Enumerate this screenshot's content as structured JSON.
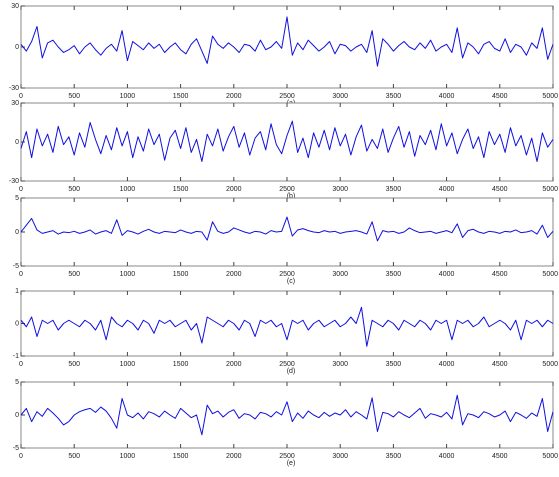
{
  "chart_data": [
    {
      "type": "line",
      "xlabel": "(a)",
      "color": "#1010e0",
      "xlim": [
        0,
        5000
      ],
      "ylim": [
        -30,
        30
      ],
      "xticks": [
        0,
        500,
        1000,
        1500,
        2000,
        2500,
        3000,
        3500,
        4000,
        4500,
        5000
      ],
      "yticks": [
        -30,
        0,
        30
      ],
      "x": [
        0,
        50,
        100,
        150,
        200,
        250,
        300,
        350,
        400,
        450,
        500,
        550,
        600,
        650,
        700,
        750,
        800,
        850,
        900,
        950,
        1000,
        1050,
        1100,
        1150,
        1200,
        1250,
        1300,
        1350,
        1400,
        1450,
        1500,
        1550,
        1600,
        1650,
        1700,
        1750,
        1800,
        1850,
        1900,
        1950,
        2000,
        2050,
        2100,
        2150,
        2200,
        2250,
        2300,
        2350,
        2400,
        2450,
        2500,
        2550,
        2600,
        2650,
        2700,
        2750,
        2800,
        2850,
        2900,
        2950,
        3000,
        3050,
        3100,
        3150,
        3200,
        3250,
        3300,
        3350,
        3400,
        3450,
        3500,
        3550,
        3600,
        3650,
        3700,
        3750,
        3800,
        3850,
        3900,
        3950,
        4000,
        4050,
        4100,
        4150,
        4200,
        4250,
        4300,
        4350,
        4400,
        4450,
        4500,
        4550,
        4600,
        4650,
        4700,
        4750,
        4800,
        4850,
        4900,
        4950,
        5000
      ],
      "values": [
        2,
        -3,
        4,
        15,
        -8,
        3,
        5,
        0,
        -4,
        -2,
        1,
        -5,
        0,
        3,
        -2,
        -6,
        -1,
        2,
        -3,
        12,
        -10,
        4,
        1,
        -2,
        3,
        -1,
        2,
        -4,
        0,
        3,
        -2,
        -5,
        2,
        6,
        -3,
        -12,
        8,
        2,
        -1,
        3,
        0,
        -4,
        2,
        1,
        -3,
        5,
        -2,
        0,
        4,
        -1,
        22,
        -6,
        3,
        -2,
        5,
        1,
        -3,
        0,
        4,
        -5,
        2,
        1,
        -3,
        0,
        2,
        -4,
        12,
        -14,
        6,
        2,
        -3,
        1,
        4,
        0,
        -2,
        3,
        -1,
        5,
        -3,
        0,
        2,
        -4,
        14,
        -8,
        3,
        0,
        -5,
        2,
        4,
        -1,
        -3,
        6,
        -4,
        2,
        0,
        -6,
        3,
        -1,
        14,
        -9,
        2
      ]
    },
    {
      "type": "line",
      "xlabel": "(b)",
      "color": "#1010e0",
      "xlim": [
        0,
        5000
      ],
      "ylim": [
        -30,
        30
      ],
      "xticks": [
        0,
        500,
        1000,
        1500,
        2000,
        2500,
        3000,
        3500,
        4000,
        4500,
        5000
      ],
      "yticks": [
        -30,
        0,
        30
      ],
      "x": [
        0,
        50,
        100,
        150,
        200,
        250,
        300,
        350,
        400,
        450,
        500,
        550,
        600,
        650,
        700,
        750,
        800,
        850,
        900,
        950,
        1000,
        1050,
        1100,
        1150,
        1200,
        1250,
        1300,
        1350,
        1400,
        1450,
        1500,
        1550,
        1600,
        1650,
        1700,
        1750,
        1800,
        1850,
        1900,
        1950,
        2000,
        2050,
        2100,
        2150,
        2200,
        2250,
        2300,
        2350,
        2400,
        2450,
        2500,
        2550,
        2600,
        2650,
        2700,
        2750,
        2800,
        2850,
        2900,
        2950,
        3000,
        3050,
        3100,
        3150,
        3200,
        3250,
        3300,
        3350,
        3400,
        3450,
        3500,
        3550,
        3600,
        3650,
        3700,
        3750,
        3800,
        3850,
        3900,
        3950,
        4000,
        4050,
        4100,
        4150,
        4200,
        4250,
        4300,
        4350,
        4400,
        4450,
        4500,
        4550,
        4600,
        4650,
        4700,
        4750,
        4800,
        4850,
        4900,
        4950,
        5000
      ],
      "values": [
        -5,
        8,
        -12,
        10,
        -3,
        6,
        -8,
        12,
        -2,
        4,
        -10,
        7,
        -4,
        15,
        2,
        -9,
        5,
        -6,
        11,
        -3,
        8,
        -12,
        4,
        -7,
        10,
        -2,
        6,
        -14,
        3,
        9,
        -5,
        11,
        -8,
        2,
        -15,
        6,
        -3,
        10,
        -7,
        4,
        12,
        -4,
        7,
        -10,
        3,
        8,
        -6,
        14,
        -2,
        -9,
        5,
        16,
        -8,
        3,
        -12,
        7,
        -4,
        9,
        -6,
        11,
        -3,
        6,
        -10,
        4,
        13,
        -7,
        2,
        -5,
        10,
        -8,
        3,
        12,
        -4,
        8,
        -11,
        5,
        -2,
        9,
        -6,
        14,
        -3,
        7,
        -9,
        2,
        10,
        -5,
        4,
        -12,
        8,
        -2,
        6,
        -8,
        11,
        -3,
        5,
        -10,
        3,
        -15,
        7,
        -4,
        2
      ]
    },
    {
      "type": "line",
      "xlabel": "(c)",
      "color": "#1010e0",
      "xlim": [
        0,
        5000
      ],
      "ylim": [
        -5,
        5
      ],
      "xticks": [
        0,
        500,
        1000,
        1500,
        2000,
        2500,
        3000,
        3500,
        4000,
        4500,
        5000
      ],
      "yticks": [
        -5,
        0,
        5
      ],
      "x": [
        0,
        50,
        100,
        150,
        200,
        250,
        300,
        350,
        400,
        450,
        500,
        550,
        600,
        650,
        700,
        750,
        800,
        850,
        900,
        950,
        1000,
        1050,
        1100,
        1150,
        1200,
        1250,
        1300,
        1350,
        1400,
        1450,
        1500,
        1550,
        1600,
        1650,
        1700,
        1750,
        1800,
        1850,
        1900,
        1950,
        2000,
        2050,
        2100,
        2150,
        2200,
        2250,
        2300,
        2350,
        2400,
        2450,
        2500,
        2550,
        2600,
        2650,
        2700,
        2750,
        2800,
        2850,
        2900,
        2950,
        3000,
        3050,
        3100,
        3150,
        3200,
        3250,
        3300,
        3350,
        3400,
        3450,
        3500,
        3550,
        3600,
        3650,
        3700,
        3750,
        3800,
        3850,
        3900,
        3950,
        4000,
        4050,
        4100,
        4150,
        4200,
        4250,
        4300,
        4350,
        4400,
        4450,
        4500,
        4550,
        4600,
        4650,
        4700,
        4750,
        4800,
        4850,
        4900,
        4950,
        5000
      ],
      "values": [
        0,
        1,
        2,
        0.3,
        -0.2,
        0,
        0.2,
        -0.3,
        0,
        -0.1,
        0.1,
        -0.2,
        0,
        0.3,
        -0.3,
        0,
        0.2,
        -0.2,
        1.8,
        -0.5,
        0.2,
        0,
        -0.3,
        0.1,
        0.4,
        0,
        -0.2,
        0.1,
        0,
        -0.1,
        0.3,
        0,
        -0.2,
        0.1,
        0,
        -1.2,
        1.5,
        0.1,
        -0.2,
        0,
        0.6,
        0.3,
        0,
        -0.2,
        0.1,
        0,
        -0.3,
        0.2,
        0,
        0.1,
        2.2,
        -0.6,
        0.3,
        0.5,
        0.2,
        0,
        -0.1,
        0.2,
        0,
        0.1,
        -0.2,
        0,
        0.1,
        0.2,
        0,
        -0.3,
        1.5,
        -1.3,
        0.2,
        0,
        0.1,
        -0.2,
        0,
        0.6,
        0.2,
        -0.1,
        0,
        0.1,
        -0.2,
        0,
        0.2,
        -0.1,
        1.2,
        -0.8,
        0.2,
        0.4,
        0,
        -0.2,
        0.1,
        0,
        -0.2,
        0.1,
        0,
        0.3,
        -0.1,
        0,
        0.2,
        -0.3,
        1,
        -0.8,
        0.1
      ]
    },
    {
      "type": "line",
      "xlabel": "(d)",
      "color": "#1010e0",
      "xlim": [
        0,
        5000
      ],
      "ylim": [
        -1,
        1
      ],
      "xticks": [
        0,
        500,
        1000,
        1500,
        2000,
        2500,
        3000,
        3500,
        4000,
        4500,
        5000
      ],
      "yticks": [
        -1,
        0,
        1
      ],
      "x": [
        0,
        50,
        100,
        150,
        200,
        250,
        300,
        350,
        400,
        450,
        500,
        550,
        600,
        650,
        700,
        750,
        800,
        850,
        900,
        950,
        1000,
        1050,
        1100,
        1150,
        1200,
        1250,
        1300,
        1350,
        1400,
        1450,
        1500,
        1550,
        1600,
        1650,
        1700,
        1750,
        1800,
        1850,
        1900,
        1950,
        2000,
        2050,
        2100,
        2150,
        2200,
        2250,
        2300,
        2350,
        2400,
        2450,
        2500,
        2550,
        2600,
        2650,
        2700,
        2750,
        2800,
        2850,
        2900,
        2950,
        3000,
        3050,
        3100,
        3150,
        3200,
        3250,
        3300,
        3350,
        3400,
        3450,
        3500,
        3550,
        3600,
        3650,
        3700,
        3750,
        3800,
        3850,
        3900,
        3950,
        4000,
        4050,
        4100,
        4150,
        4200,
        4250,
        4300,
        4350,
        4400,
        4450,
        4500,
        4550,
        4600,
        4650,
        4700,
        4750,
        4800,
        4850,
        4900,
        4950,
        5000
      ],
      "values": [
        0.1,
        -0.1,
        0.2,
        -0.4,
        0.1,
        0,
        0.1,
        -0.2,
        0,
        0.1,
        0,
        -0.1,
        0.1,
        0,
        -0.2,
        0.1,
        -0.5,
        0.2,
        0,
        -0.1,
        0.1,
        0,
        -0.2,
        0.1,
        0,
        -0.3,
        0.1,
        0,
        0.1,
        -0.1,
        0,
        0.1,
        -0.2,
        0,
        -0.6,
        0.2,
        0.1,
        0,
        -0.1,
        0.1,
        0,
        -0.2,
        0.1,
        0,
        -0.4,
        0.1,
        0,
        0.1,
        -0.1,
        0,
        -0.5,
        0.1,
        0,
        0.1,
        -0.2,
        0,
        0.1,
        -0.1,
        0,
        0.1,
        -0.1,
        0,
        0.2,
        0,
        0.5,
        -0.7,
        0.1,
        0,
        -0.1,
        0.1,
        0,
        -0.2,
        0.1,
        0,
        -0.1,
        0.1,
        0,
        -0.2,
        0.1,
        0,
        0.1,
        -0.5,
        0.1,
        0,
        0.1,
        -0.1,
        0,
        0.2,
        -0.1,
        0,
        0.1,
        0,
        -0.2,
        0.1,
        -0.5,
        0.1,
        0,
        0.1,
        -0.1,
        0.1,
        0
      ]
    },
    {
      "type": "line",
      "xlabel": "(e)",
      "color": "#1010e0",
      "xlim": [
        0,
        5000
      ],
      "ylim": [
        -5,
        5
      ],
      "xticks": [
        0,
        500,
        1000,
        1500,
        2000,
        2500,
        3000,
        3500,
        4000,
        4500,
        5000
      ],
      "yticks": [
        -5,
        0,
        5
      ],
      "x": [
        0,
        50,
        100,
        150,
        200,
        250,
        300,
        350,
        400,
        450,
        500,
        550,
        600,
        650,
        700,
        750,
        800,
        850,
        900,
        950,
        1000,
        1050,
        1100,
        1150,
        1200,
        1250,
        1300,
        1350,
        1400,
        1450,
        1500,
        1550,
        1600,
        1650,
        1700,
        1750,
        1800,
        1850,
        1900,
        1950,
        2000,
        2050,
        2100,
        2150,
        2200,
        2250,
        2300,
        2350,
        2400,
        2450,
        2500,
        2550,
        2600,
        2650,
        2700,
        2750,
        2800,
        2850,
        2900,
        2950,
        3000,
        3050,
        3100,
        3150,
        3200,
        3250,
        3300,
        3350,
        3400,
        3450,
        3500,
        3550,
        3600,
        3650,
        3700,
        3750,
        3800,
        3850,
        3900,
        3950,
        4000,
        4050,
        4100,
        4150,
        4200,
        4250,
        4300,
        4350,
        4400,
        4450,
        4500,
        4550,
        4600,
        4650,
        4700,
        4750,
        4800,
        4850,
        4900,
        4950,
        5000
      ],
      "values": [
        0,
        1,
        -1,
        0.5,
        -0.2,
        1,
        0.3,
        -0.5,
        -1.5,
        -1,
        0,
        0.5,
        0.8,
        1,
        0.4,
        1.2,
        0.6,
        -0.5,
        -2,
        2.5,
        0,
        -0.4,
        0.3,
        -0.6,
        0.5,
        0.2,
        -0.3,
        0.6,
        0,
        -0.5,
        1,
        0.3,
        -0.4,
        0,
        -3,
        1.5,
        0.2,
        0.6,
        -0.3,
        0.4,
        0.8,
        -0.5,
        0.2,
        0,
        -0.6,
        0.4,
        0.2,
        -0.3,
        0.5,
        0,
        2,
        -1,
        0.3,
        -0.5,
        0.6,
        0,
        -0.4,
        0.4,
        -0.2,
        0.3,
        0,
        0.8,
        -0.3,
        0.5,
        0,
        -0.6,
        2.6,
        -2.5,
        0.4,
        0.2,
        -0.3,
        0.5,
        0,
        -0.4,
        0.3,
        1,
        -0.5,
        0.2,
        0,
        -0.3,
        0.4,
        -0.6,
        3,
        -1.5,
        0.2,
        0,
        -0.4,
        0.5,
        0.2,
        -0.3,
        0,
        0.6,
        -1,
        0.4,
        0,
        -0.5,
        0.3,
        -0.2,
        2.5,
        -2.5,
        0.5
      ]
    }
  ]
}
